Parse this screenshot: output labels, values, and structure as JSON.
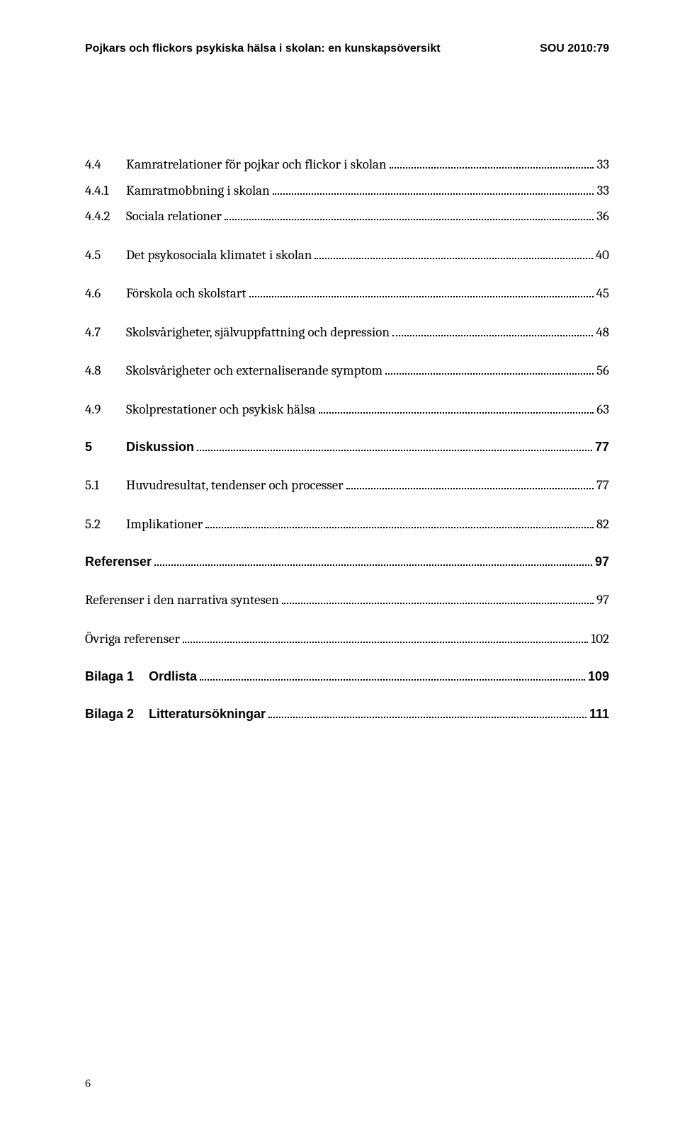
{
  "header": {
    "left": "Pojkars och flickors psykiska hälsa i skolan: en kunskapsöversikt",
    "right": "SOU 2010:79"
  },
  "toc": [
    {
      "num": "4.4",
      "title": "Kamratrelationer för pojkar och flickor i skolan",
      "page": "33",
      "bold": false,
      "gapBefore": false
    },
    {
      "num": "4.4.1",
      "title": "Kamratmobbning i skolan",
      "page": "33",
      "bold": false,
      "gapBefore": false
    },
    {
      "num": "4.4.2",
      "title": "Sociala relationer",
      "page": "36",
      "bold": false,
      "gapBefore": false
    },
    {
      "num": "4.5",
      "title": "Det psykosociala klimatet i skolan",
      "page": "40",
      "bold": false,
      "gapBefore": true
    },
    {
      "num": "4.6",
      "title": "Förskola och skolstart",
      "page": "45",
      "bold": false,
      "gapBefore": true
    },
    {
      "num": "4.7",
      "title": "Skolsvårigheter, självuppfattning och depression",
      "page": "48",
      "bold": false,
      "gapBefore": true
    },
    {
      "num": "4.8",
      "title": "Skolsvårigheter och externaliserande symptom",
      "page": "56",
      "bold": false,
      "gapBefore": true
    },
    {
      "num": "4.9",
      "title": "Skolprestationer och psykisk hälsa",
      "page": "63",
      "bold": false,
      "gapBefore": true
    },
    {
      "num": "5",
      "title": "Diskussion",
      "page": "77",
      "bold": true,
      "gapBefore": true
    },
    {
      "num": "5.1",
      "title": "Huvudresultat, tendenser och processer",
      "page": "77",
      "bold": false,
      "gapBefore": true
    },
    {
      "num": "5.2",
      "title": "Implikationer",
      "page": "82",
      "bold": false,
      "gapBefore": true
    },
    {
      "num": "",
      "title": "Referenser",
      "page": "97",
      "bold": true,
      "gapBefore": true
    },
    {
      "num": "",
      "title": "Referenser i den narrativa syntesen",
      "page": "97",
      "bold": false,
      "gapBefore": true
    },
    {
      "num": "",
      "title": "Övriga referenser",
      "page": "102",
      "bold": false,
      "gapBefore": true
    },
    {
      "num": "Bilaga 1",
      "title": "Ordlista",
      "page": "109",
      "bold": true,
      "gapBefore": true,
      "wideNum": true
    },
    {
      "num": "Bilaga 2",
      "title": "Litteratursökningar",
      "page": "111",
      "bold": true,
      "gapBefore": true,
      "wideNum": true
    }
  ],
  "pageNumber": "6",
  "colors": {
    "text": "#000000",
    "background": "#ffffff"
  },
  "fonts": {
    "header_family": "Arial",
    "body_family": "Cambria",
    "header_size": 16,
    "body_size": 19
  }
}
